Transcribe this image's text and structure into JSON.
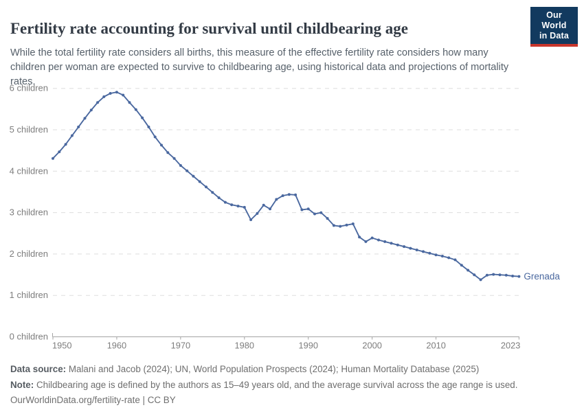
{
  "header": {
    "title": "Fertility rate accounting for survival until childbearing age",
    "subtitle": "While the total fertility rate considers all births, this measure of the effective fertility rate considers how many children per woman are expected to survive to childbearing age, using historical data and projections of mortality rates.",
    "logo": {
      "line1": "Our World",
      "line2": "in Data"
    }
  },
  "chart_data": {
    "type": "line",
    "title": "Fertility rate accounting for survival until childbearing age",
    "xlabel": "",
    "ylabel": "children",
    "xlim": [
      1950,
      2023
    ],
    "ylim": [
      0,
      6
    ],
    "grid": "horizontal-dashed",
    "legend_position": "end-of-line-label",
    "x": [
      1950,
      1951,
      1952,
      1953,
      1954,
      1955,
      1956,
      1957,
      1958,
      1959,
      1960,
      1961,
      1962,
      1963,
      1964,
      1965,
      1966,
      1967,
      1968,
      1969,
      1970,
      1971,
      1972,
      1973,
      1974,
      1975,
      1976,
      1977,
      1978,
      1979,
      1980,
      1981,
      1982,
      1983,
      1984,
      1985,
      1986,
      1987,
      1988,
      1989,
      1990,
      1991,
      1992,
      1993,
      1994,
      1995,
      1996,
      1997,
      1998,
      1999,
      2000,
      2001,
      2002,
      2003,
      2004,
      2005,
      2006,
      2007,
      2008,
      2009,
      2010,
      2011,
      2012,
      2013,
      2014,
      2015,
      2016,
      2017,
      2018,
      2019,
      2020,
      2021,
      2022,
      2023
    ],
    "series": [
      {
        "name": "Grenada",
        "color": "#4a689f",
        "values": [
          4.3,
          4.46,
          4.64,
          4.85,
          5.06,
          5.27,
          5.47,
          5.65,
          5.79,
          5.87,
          5.9,
          5.83,
          5.65,
          5.48,
          5.28,
          5.06,
          4.82,
          4.62,
          4.44,
          4.3,
          4.13,
          4.0,
          3.87,
          3.74,
          3.61,
          3.48,
          3.35,
          3.24,
          3.18,
          3.15,
          3.12,
          2.82,
          2.97,
          3.17,
          3.08,
          3.31,
          3.4,
          3.43,
          3.42,
          3.06,
          3.08,
          2.96,
          2.99,
          2.85,
          2.68,
          2.66,
          2.69,
          2.72,
          2.4,
          2.29,
          2.38,
          2.33,
          2.29,
          2.25,
          2.21,
          2.17,
          2.13,
          2.09,
          2.05,
          2.01,
          1.97,
          1.94,
          1.9,
          1.85,
          1.72,
          1.6,
          1.49,
          1.37,
          1.48,
          1.5,
          1.49,
          1.48,
          1.46,
          1.45
        ]
      }
    ],
    "y_ticks": [
      {
        "value": 0,
        "label": "0 children"
      },
      {
        "value": 1,
        "label": "1 children"
      },
      {
        "value": 2,
        "label": "2 children"
      },
      {
        "value": 3,
        "label": "3 children"
      },
      {
        "value": 4,
        "label": "4 children"
      },
      {
        "value": 5,
        "label": "5 children"
      },
      {
        "value": 6,
        "label": "6 children"
      }
    ],
    "x_ticks": [
      {
        "value": 1950,
        "label": "1950"
      },
      {
        "value": 1960,
        "label": "1960"
      },
      {
        "value": 1970,
        "label": "1970"
      },
      {
        "value": 1980,
        "label": "1980"
      },
      {
        "value": 1990,
        "label": "1990"
      },
      {
        "value": 2000,
        "label": "2000"
      },
      {
        "value": 2010,
        "label": "2010"
      },
      {
        "value": 2023,
        "label": "2023"
      }
    ]
  },
  "footer": {
    "data_source_label": "Data source:",
    "data_source": "Malani and Jacob (2024); UN, World Population Prospects (2024); Human Mortality Database (2025)",
    "note_label": "Note:",
    "note": "Childbearing age is defined by the authors as 15–49 years old, and the average survival across the age range is used.",
    "url": "OurWorldinData.org/fertility-rate",
    "license": "| CC BY"
  },
  "colors": {
    "line": "#4a689f",
    "title": "#333b45",
    "subtitle": "#56606a",
    "axis_label": "#7d7d7d",
    "gridline": "#dedede",
    "axis_line": "#a3a3a3",
    "footer": "#6e6e6e",
    "logo_bg": "#123a5f",
    "logo_red": "#c9362c"
  }
}
